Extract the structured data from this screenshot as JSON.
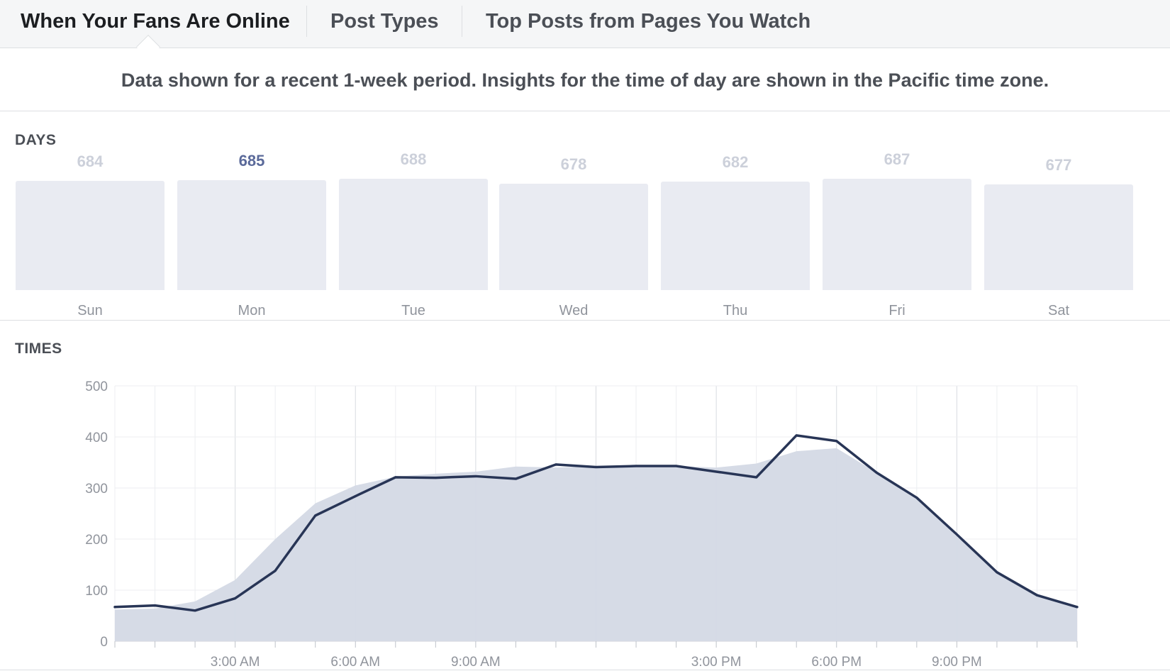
{
  "tabs": [
    {
      "label": "When Your Fans Are Online",
      "active": true
    },
    {
      "label": "Post Types",
      "active": false
    },
    {
      "label": "Top Posts from Pages You Watch",
      "active": false
    }
  ],
  "notice": "Data shown for a recent 1-week period. Insights for the time of day are shown in the Pacific time zone.",
  "days_section": {
    "title": "DAYS",
    "highlighted": "Mon"
  },
  "times_section": {
    "title": "TIMES"
  },
  "colors": {
    "line": "#283556",
    "area": "#d4d9e5",
    "day_bar": "#e9ebf2",
    "highlight_text": "#5b6a9a",
    "muted_text": "#ccd0da"
  },
  "chart_data": [
    {
      "type": "bar",
      "title": "DAYS",
      "categories": [
        "Sun",
        "Mon",
        "Tue",
        "Wed",
        "Thu",
        "Fri",
        "Sat"
      ],
      "values": [
        684,
        685,
        688,
        678,
        682,
        687,
        677
      ]
    },
    {
      "type": "line",
      "title": "TIMES",
      "x_unit": "hour of day (Pacific)",
      "x": [
        0,
        1,
        2,
        3,
        4,
        5,
        6,
        7,
        8,
        9,
        10,
        11,
        12,
        13,
        14,
        15,
        16,
        17,
        18,
        19,
        20,
        21,
        22,
        23,
        24
      ],
      "x_tick_labels": [
        {
          "x": 3,
          "label": "3:00 AM"
        },
        {
          "x": 6,
          "label": "6:00 AM"
        },
        {
          "x": 9,
          "label": "9:00 AM"
        },
        {
          "x": 15,
          "label": "3:00 PM"
        },
        {
          "x": 18,
          "label": "6:00 PM"
        },
        {
          "x": 21,
          "label": "9:00 PM"
        }
      ],
      "y_ticks": [
        0,
        100,
        200,
        300,
        400,
        500
      ],
      "ylim": [
        0,
        500
      ],
      "xlim": [
        0,
        24
      ],
      "grid": true,
      "series": [
        {
          "style": "area",
          "values": [
            62,
            64,
            78,
            120,
            200,
            270,
            305,
            322,
            328,
            332,
            342,
            340,
            343,
            344,
            343,
            340,
            348,
            372,
            378,
            330,
            283,
            205,
            138,
            93,
            68
          ]
        },
        {
          "style": "line",
          "values": [
            67,
            70,
            60,
            84,
            138,
            246,
            284,
            321,
            320,
            323,
            318,
            346,
            341,
            343,
            343,
            332,
            321,
            403,
            392,
            330,
            281,
            209,
            135,
            90,
            67
          ]
        }
      ]
    }
  ]
}
